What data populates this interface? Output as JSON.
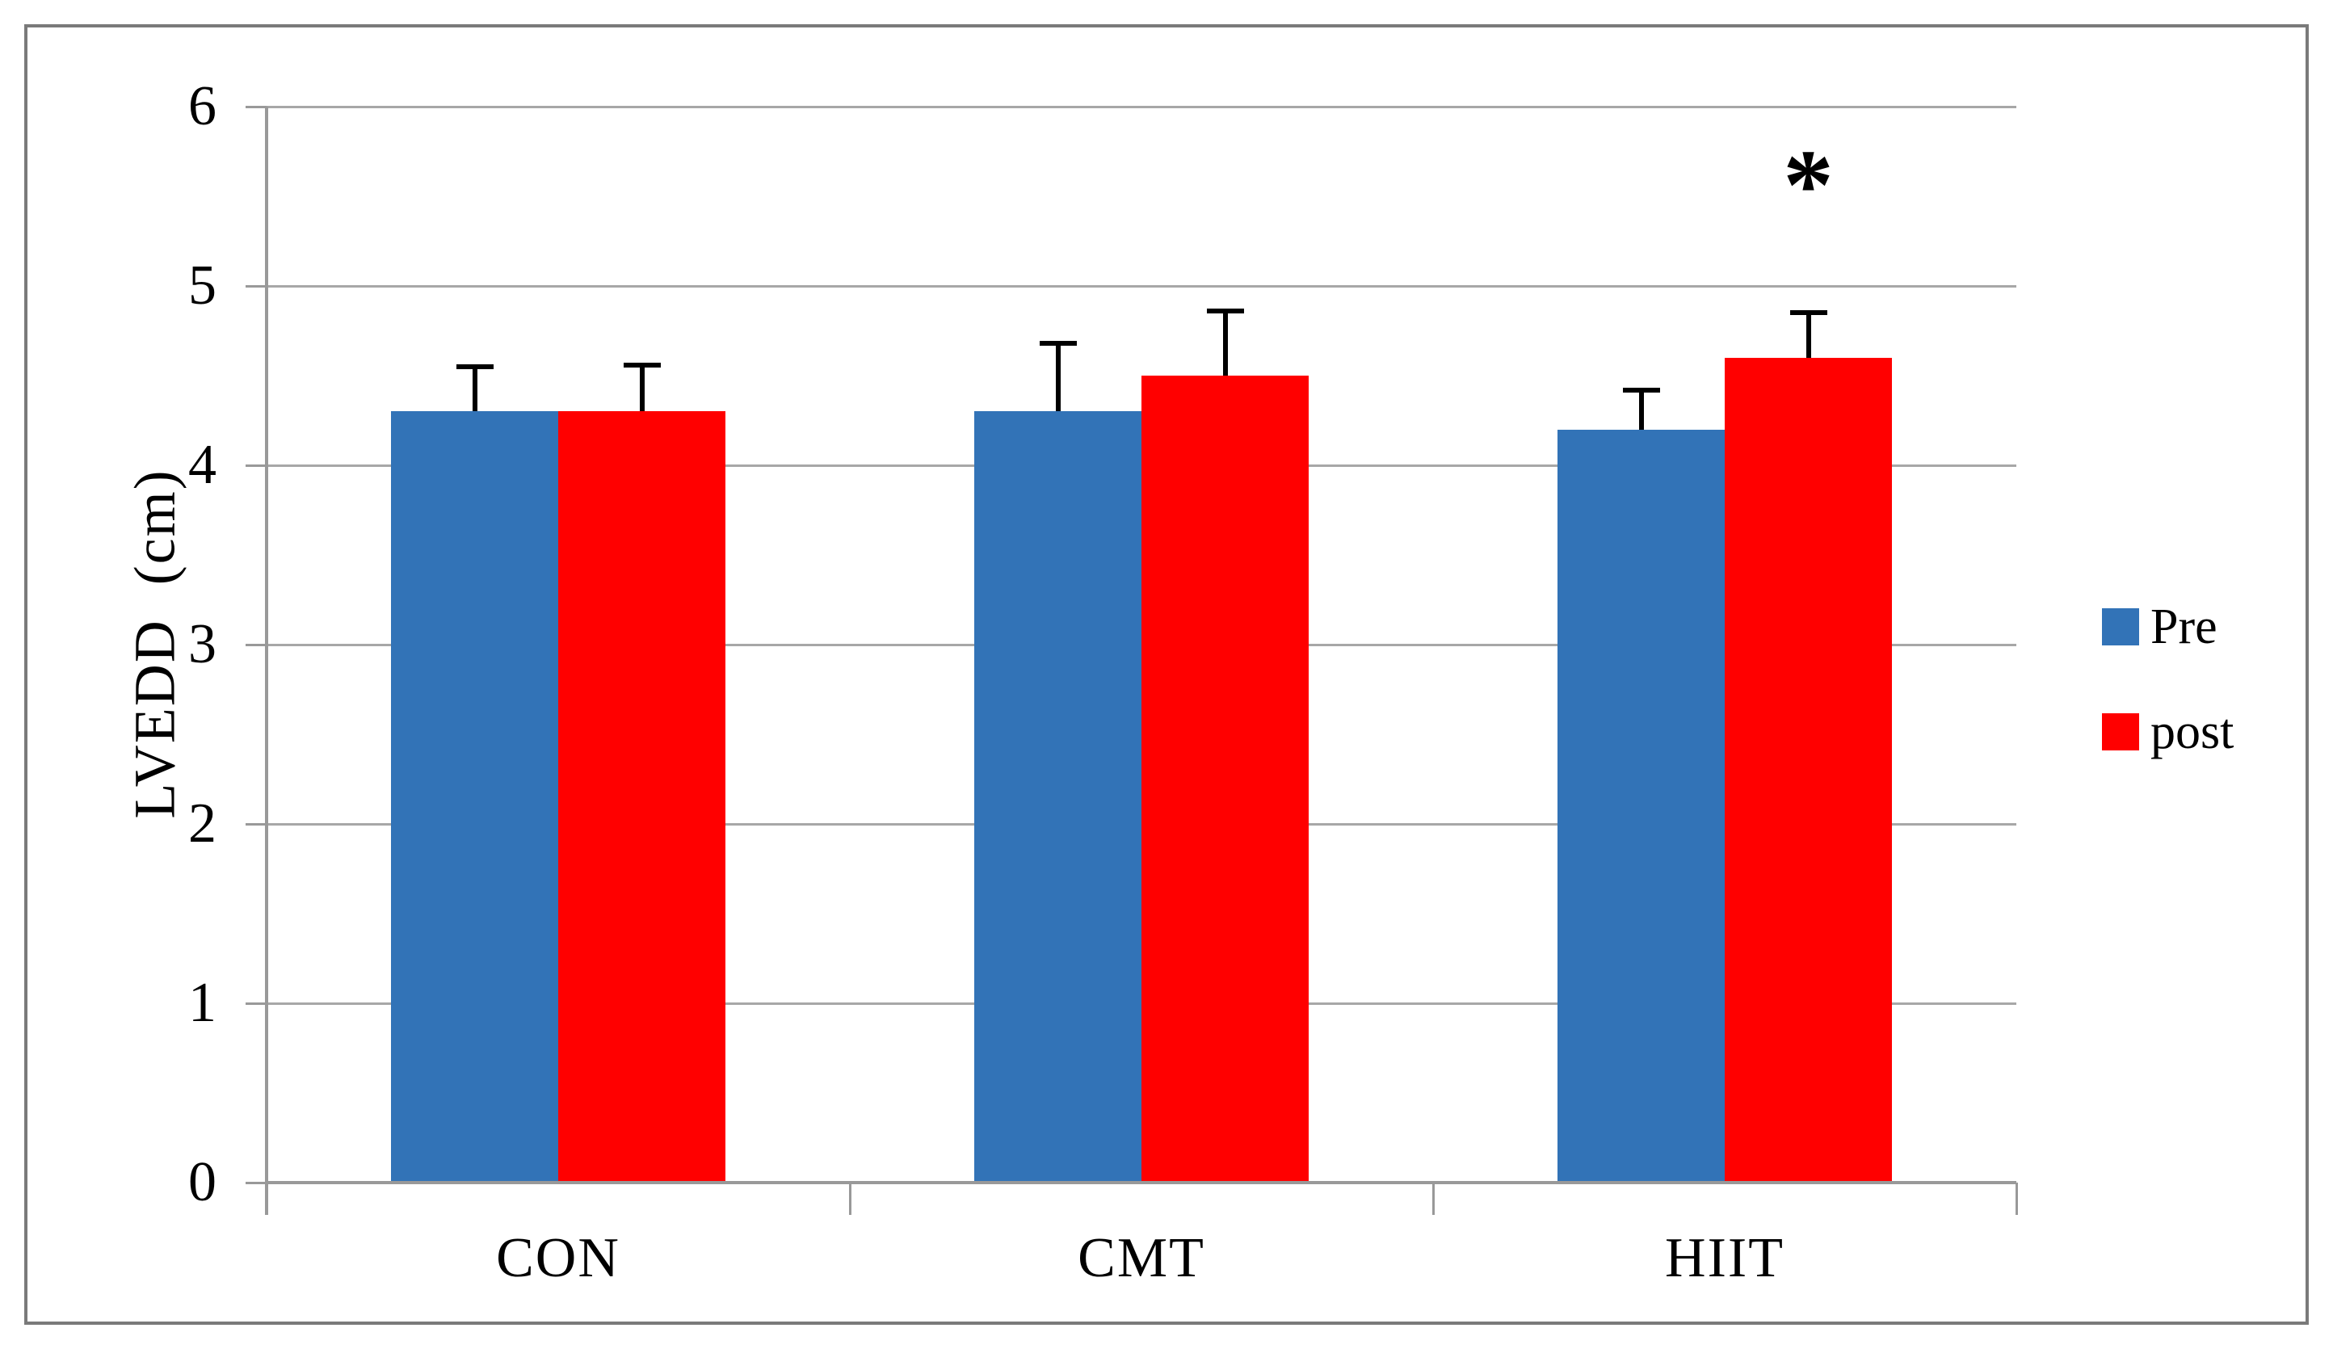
{
  "figure": {
    "background": "#FFFFFF",
    "border_color": "#7A7A7A",
    "text_color": "#000000",
    "gridline_color": "#A7A7A7",
    "axis_color": "#999999"
  },
  "chart_data": {
    "type": "bar",
    "title": "",
    "ylabel": "LVEDD (cm)",
    "xlabel": "",
    "categories": [
      "CON",
      "CMT",
      "HIIT"
    ],
    "series": [
      {
        "name": "Pre",
        "color": "#3273B7",
        "values": [
          4.3,
          4.3,
          4.2
        ],
        "errors_plus": [
          0.25,
          0.38,
          0.22
        ]
      },
      {
        "name": "post",
        "color": "#FF0000",
        "values": [
          4.3,
          4.5,
          4.6
        ],
        "errors_plus": [
          0.26,
          0.36,
          0.25
        ]
      }
    ],
    "ylim": [
      0,
      6
    ],
    "yticks": [
      0,
      1,
      2,
      3,
      4,
      5,
      6
    ],
    "grid": true,
    "legend_position": "right",
    "error_bars": "upper",
    "annotations": [
      {
        "text": "*",
        "category": "HIIT",
        "series": "post",
        "y": 5.5
      }
    ]
  }
}
